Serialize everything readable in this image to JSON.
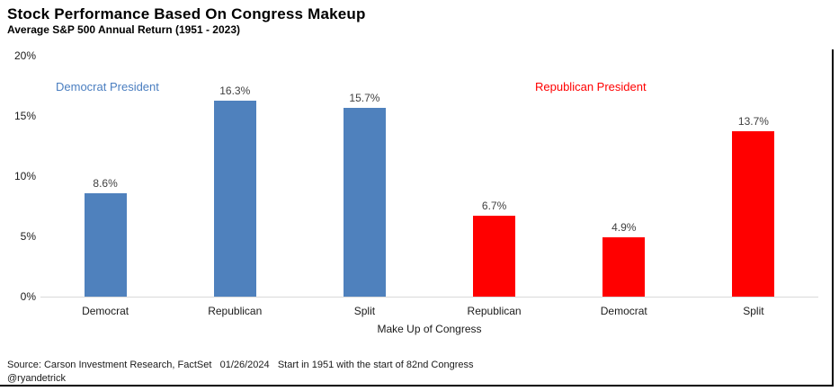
{
  "header": {
    "title": "Stock Performance Based On Congress Makeup",
    "subtitle": "Average S&P 500 Annual Return (1951 - 2023)"
  },
  "chart_data": {
    "type": "bar",
    "title": "Stock Performance Based On Congress Makeup",
    "subtitle": "Average S&P 500 Annual Return (1951 - 2023)",
    "xlabel": "Make Up of Congress",
    "ylabel": "",
    "ylim": [
      0,
      20
    ],
    "grid": false,
    "legend_position": "inline-annotations",
    "yticks": [
      {
        "label": "20%",
        "value": 20
      },
      {
        "label": "15%",
        "value": 15
      },
      {
        "label": "10%",
        "value": 10
      },
      {
        "label": "5%",
        "value": 5
      },
      {
        "label": "0%",
        "value": 0
      }
    ],
    "categories": [
      "Democrat",
      "Republican",
      "Split",
      "Republican",
      "Democrat",
      "Split"
    ],
    "series": [
      {
        "name": "Democrat President",
        "color": "#4f81bd",
        "values": [
          8.6,
          16.3,
          15.7,
          null,
          null,
          null
        ]
      },
      {
        "name": "Republican President",
        "color": "#ff0000",
        "values": [
          null,
          null,
          null,
          6.7,
          4.9,
          13.7
        ]
      }
    ],
    "bars": [
      {
        "category": "Democrat",
        "value": 8.6,
        "label": "8.6%",
        "group": "Democrat President",
        "color": "#4f81bd"
      },
      {
        "category": "Republican",
        "value": 16.3,
        "label": "16.3%",
        "group": "Democrat President",
        "color": "#4f81bd"
      },
      {
        "category": "Split",
        "value": 15.7,
        "label": "15.7%",
        "group": "Democrat President",
        "color": "#4f81bd"
      },
      {
        "category": "Republican",
        "value": 6.7,
        "label": "6.7%",
        "group": "Republican President",
        "color": "#ff0000"
      },
      {
        "category": "Democrat",
        "value": 4.9,
        "label": "4.9%",
        "group": "Republican President",
        "color": "#ff0000"
      },
      {
        "category": "Split",
        "value": 13.7,
        "label": "13.7%",
        "group": "Republican President",
        "color": "#ff0000"
      }
    ],
    "annotations": [
      {
        "text": "Democrat President",
        "color": "#4a7ec0"
      },
      {
        "text": "Republican President",
        "color": "#ff0000"
      }
    ]
  },
  "footer": {
    "source_line": "Source: Carson Investment Research, FactSet   01/26/2024   Start in 1951 with the start of 82nd Congress",
    "handle": "@ryandetrick"
  }
}
